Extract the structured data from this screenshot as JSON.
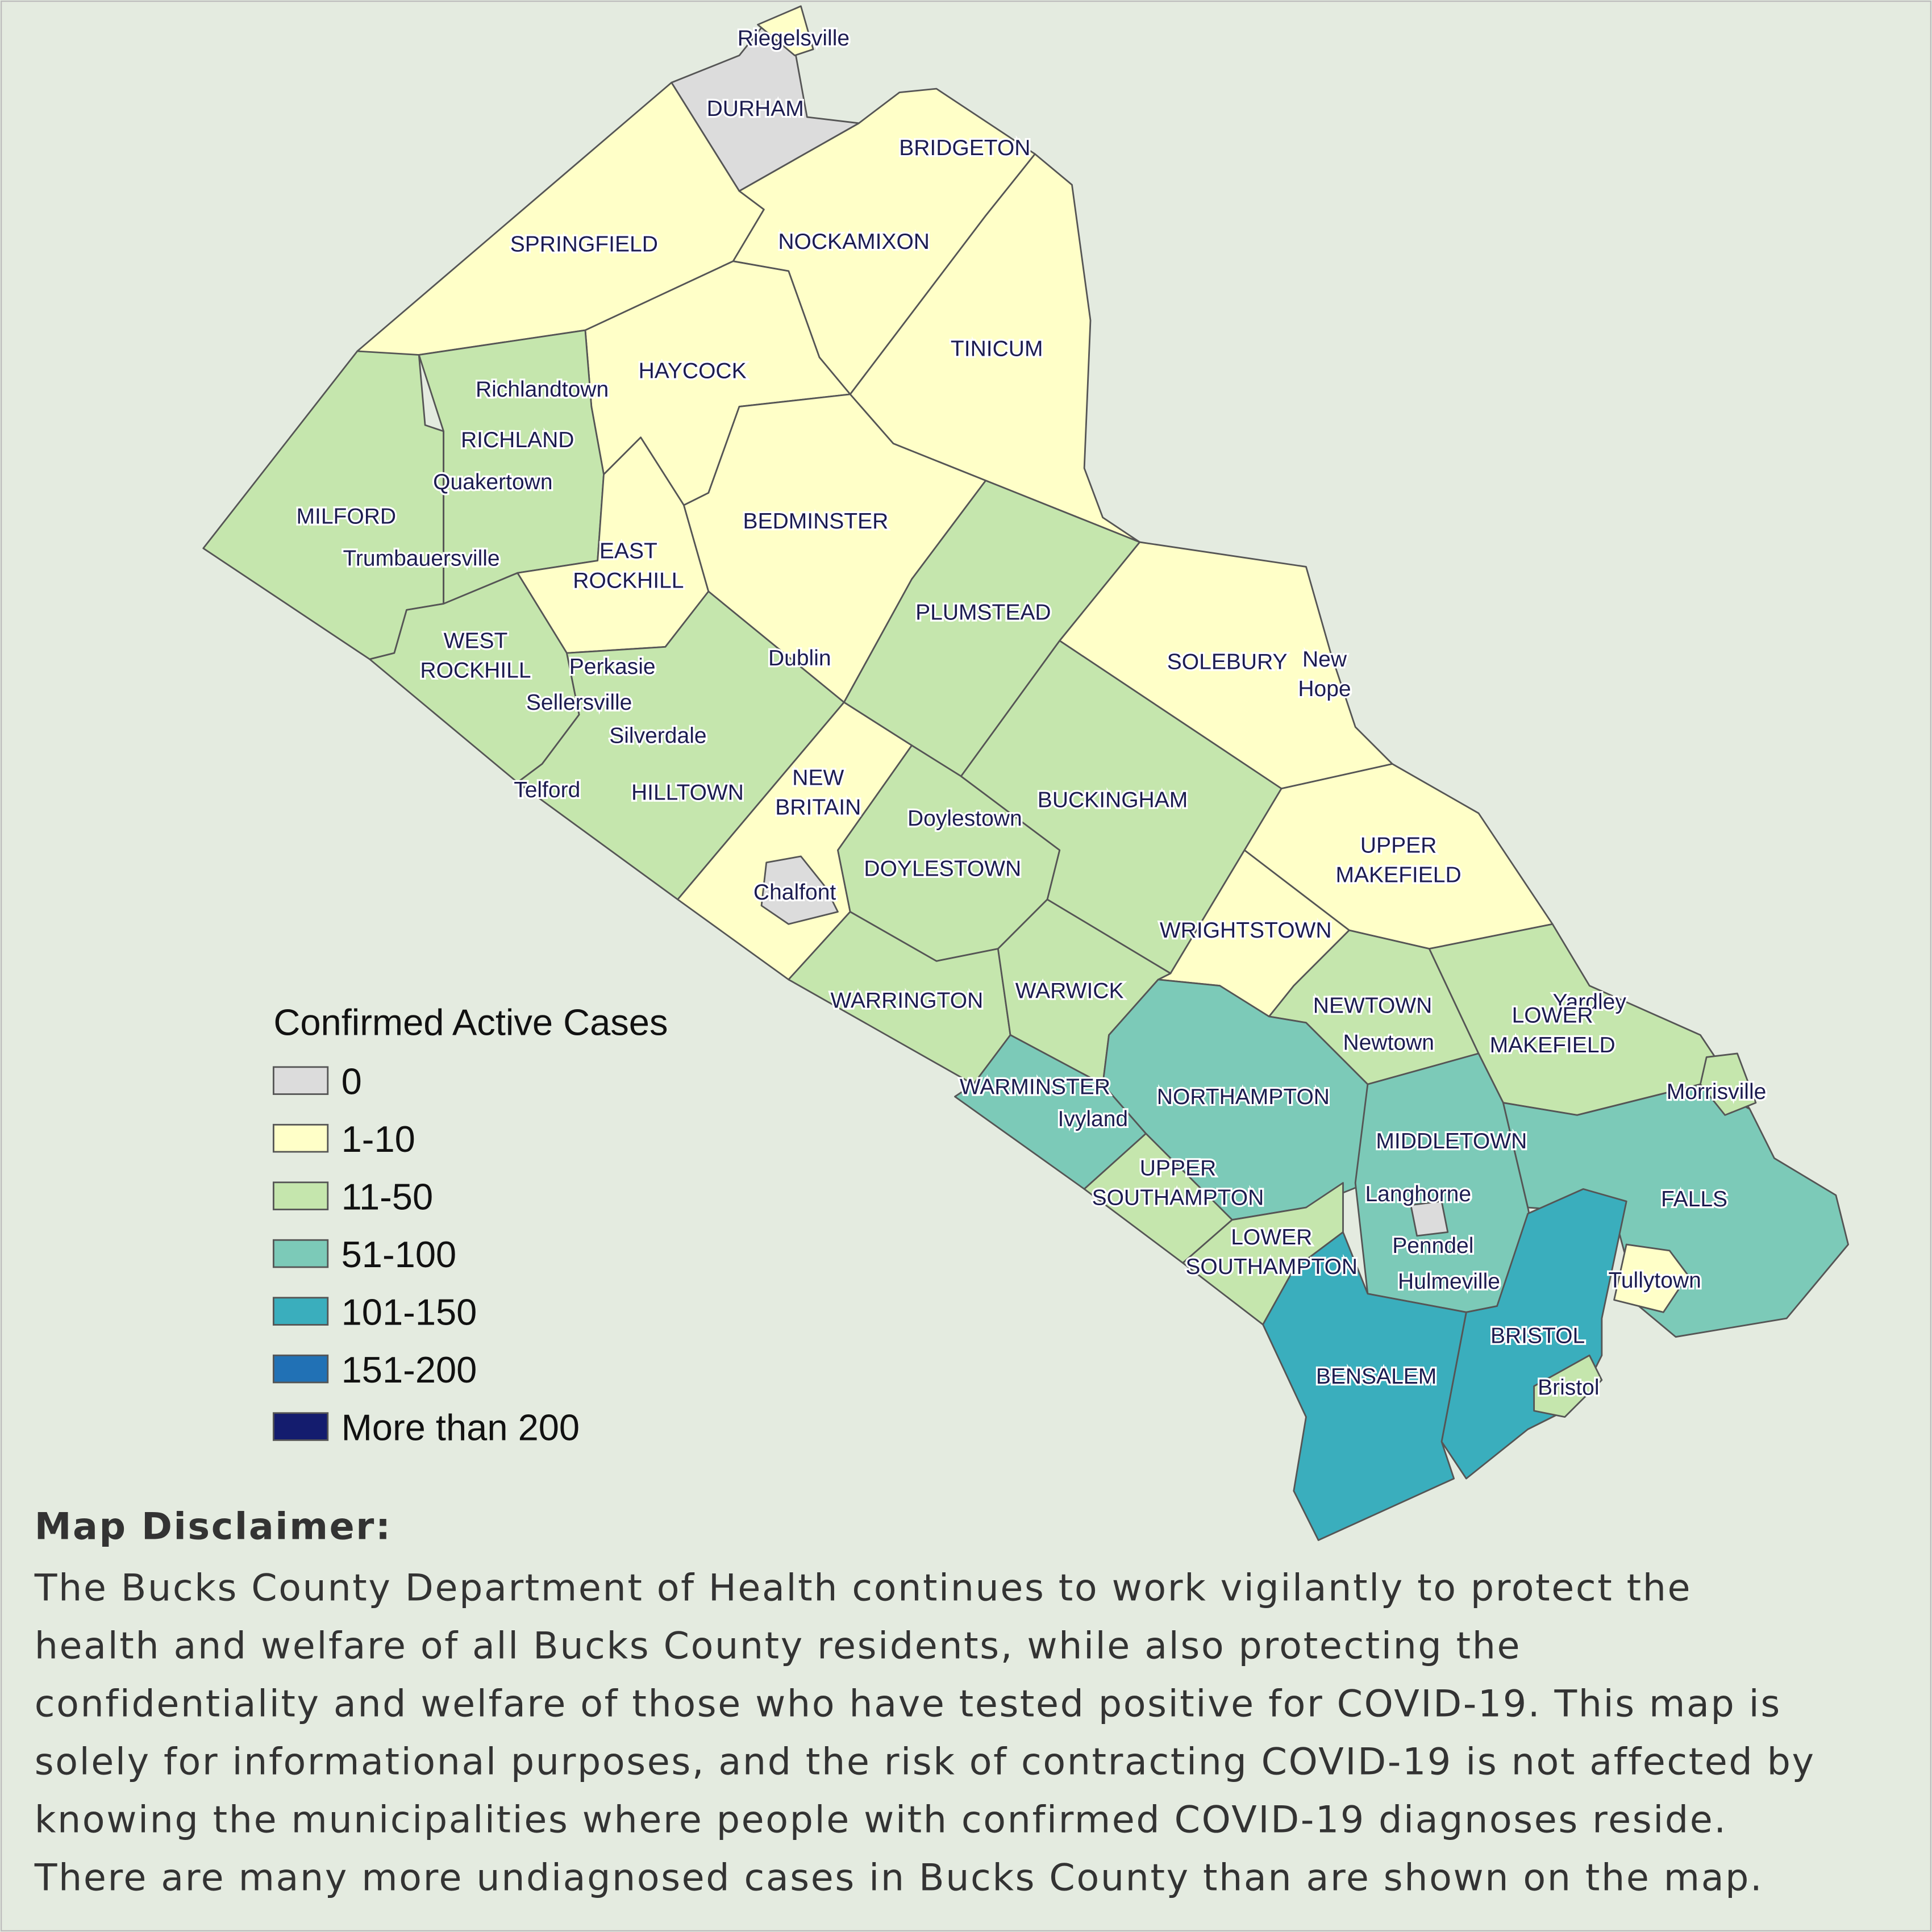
{
  "legend": {
    "title": "Confirmed Active Cases",
    "items": [
      {
        "label": "0",
        "color": "#dcdcdc"
      },
      {
        "label": "1-10",
        "color": "#ffffc8"
      },
      {
        "label": "11-50",
        "color": "#c5e6ad"
      },
      {
        "label": "51-100",
        "color": "#7ccab8"
      },
      {
        "label": "101-150",
        "color": "#3aaebd"
      },
      {
        "label": "151-200",
        "color": "#2171b5"
      },
      {
        "label": "More than 200",
        "color": "#141c6e"
      }
    ]
  },
  "places": [
    [
      "Riegelsville"
    ],
    [
      "DURHAM"
    ],
    [
      "BRIDGETON"
    ],
    [
      "SPRINGFIELD"
    ],
    [
      "NOCKAMIXON"
    ],
    [
      "TINICUM"
    ],
    [
      "HAYCOCK"
    ],
    [
      "Richlandtown"
    ],
    [
      "RICHLAND"
    ],
    [
      "Quakertown"
    ],
    [
      "MILFORD"
    ],
    [
      "Trumbauersville"
    ],
    [
      "EAST",
      "ROCKHILL"
    ],
    [
      "BEDMINSTER"
    ],
    [
      "PLUMSTEAD"
    ],
    [
      "WEST",
      "ROCKHILL"
    ],
    [
      "Perkasie"
    ],
    [
      "Dublin"
    ],
    [
      "SOLEBURY"
    ],
    [
      "New",
      "Hope"
    ],
    [
      "Sellersville"
    ],
    [
      "Silverdale"
    ],
    [
      "Telford"
    ],
    [
      "HILLTOWN"
    ],
    [
      "NEW",
      "BRITAIN"
    ],
    [
      "BUCKINGHAM"
    ],
    [
      "Doylestown"
    ],
    [
      "UPPER",
      "MAKEFIELD"
    ],
    [
      "DOYLESTOWN"
    ],
    [
      "Chalfont"
    ],
    [
      "WRIGHTSTOWN"
    ],
    [
      "WARRINGTON"
    ],
    [
      "WARWICK"
    ],
    [
      "Yardley"
    ],
    [
      "NEWTOWN"
    ],
    [
      "LOWER",
      "MAKEFIELD"
    ],
    [
      "Newtown"
    ],
    [
      "WARMINSTER"
    ],
    [
      "Morrisville"
    ],
    [
      "NORTHAMPTON"
    ],
    [
      "Ivyland"
    ],
    [
      "MIDDLETOWN"
    ],
    [
      "UPPER",
      "SOUTHAMPTON"
    ],
    [
      "Langhorne"
    ],
    [
      "FALLS"
    ],
    [
      "LOWER",
      "SOUTHAMPTON"
    ],
    [
      "Penndel"
    ],
    [
      "Hulmeville"
    ],
    [
      "Tullytown"
    ],
    [
      "BRISTOL"
    ],
    [
      "BENSALEM"
    ],
    [
      "Bristol"
    ]
  ],
  "disclaimer": {
    "heading": "Map Disclaimer:",
    "lines": [
      "The Bucks County Department of Health continues to work vigilantly to protect the",
      "health and welfare of all Bucks County residents, while also protecting the",
      "confidentiality and welfare of those who have tested positive for COVID-19. This map is",
      "solely for informational purposes, and the risk of contracting COVID-19 is not affected by",
      "knowing the municipalities where people with confirmed COVID-19 diagnoses reside.",
      "There are many more undiagnosed cases in Bucks County than are shown on the map."
    ]
  }
}
